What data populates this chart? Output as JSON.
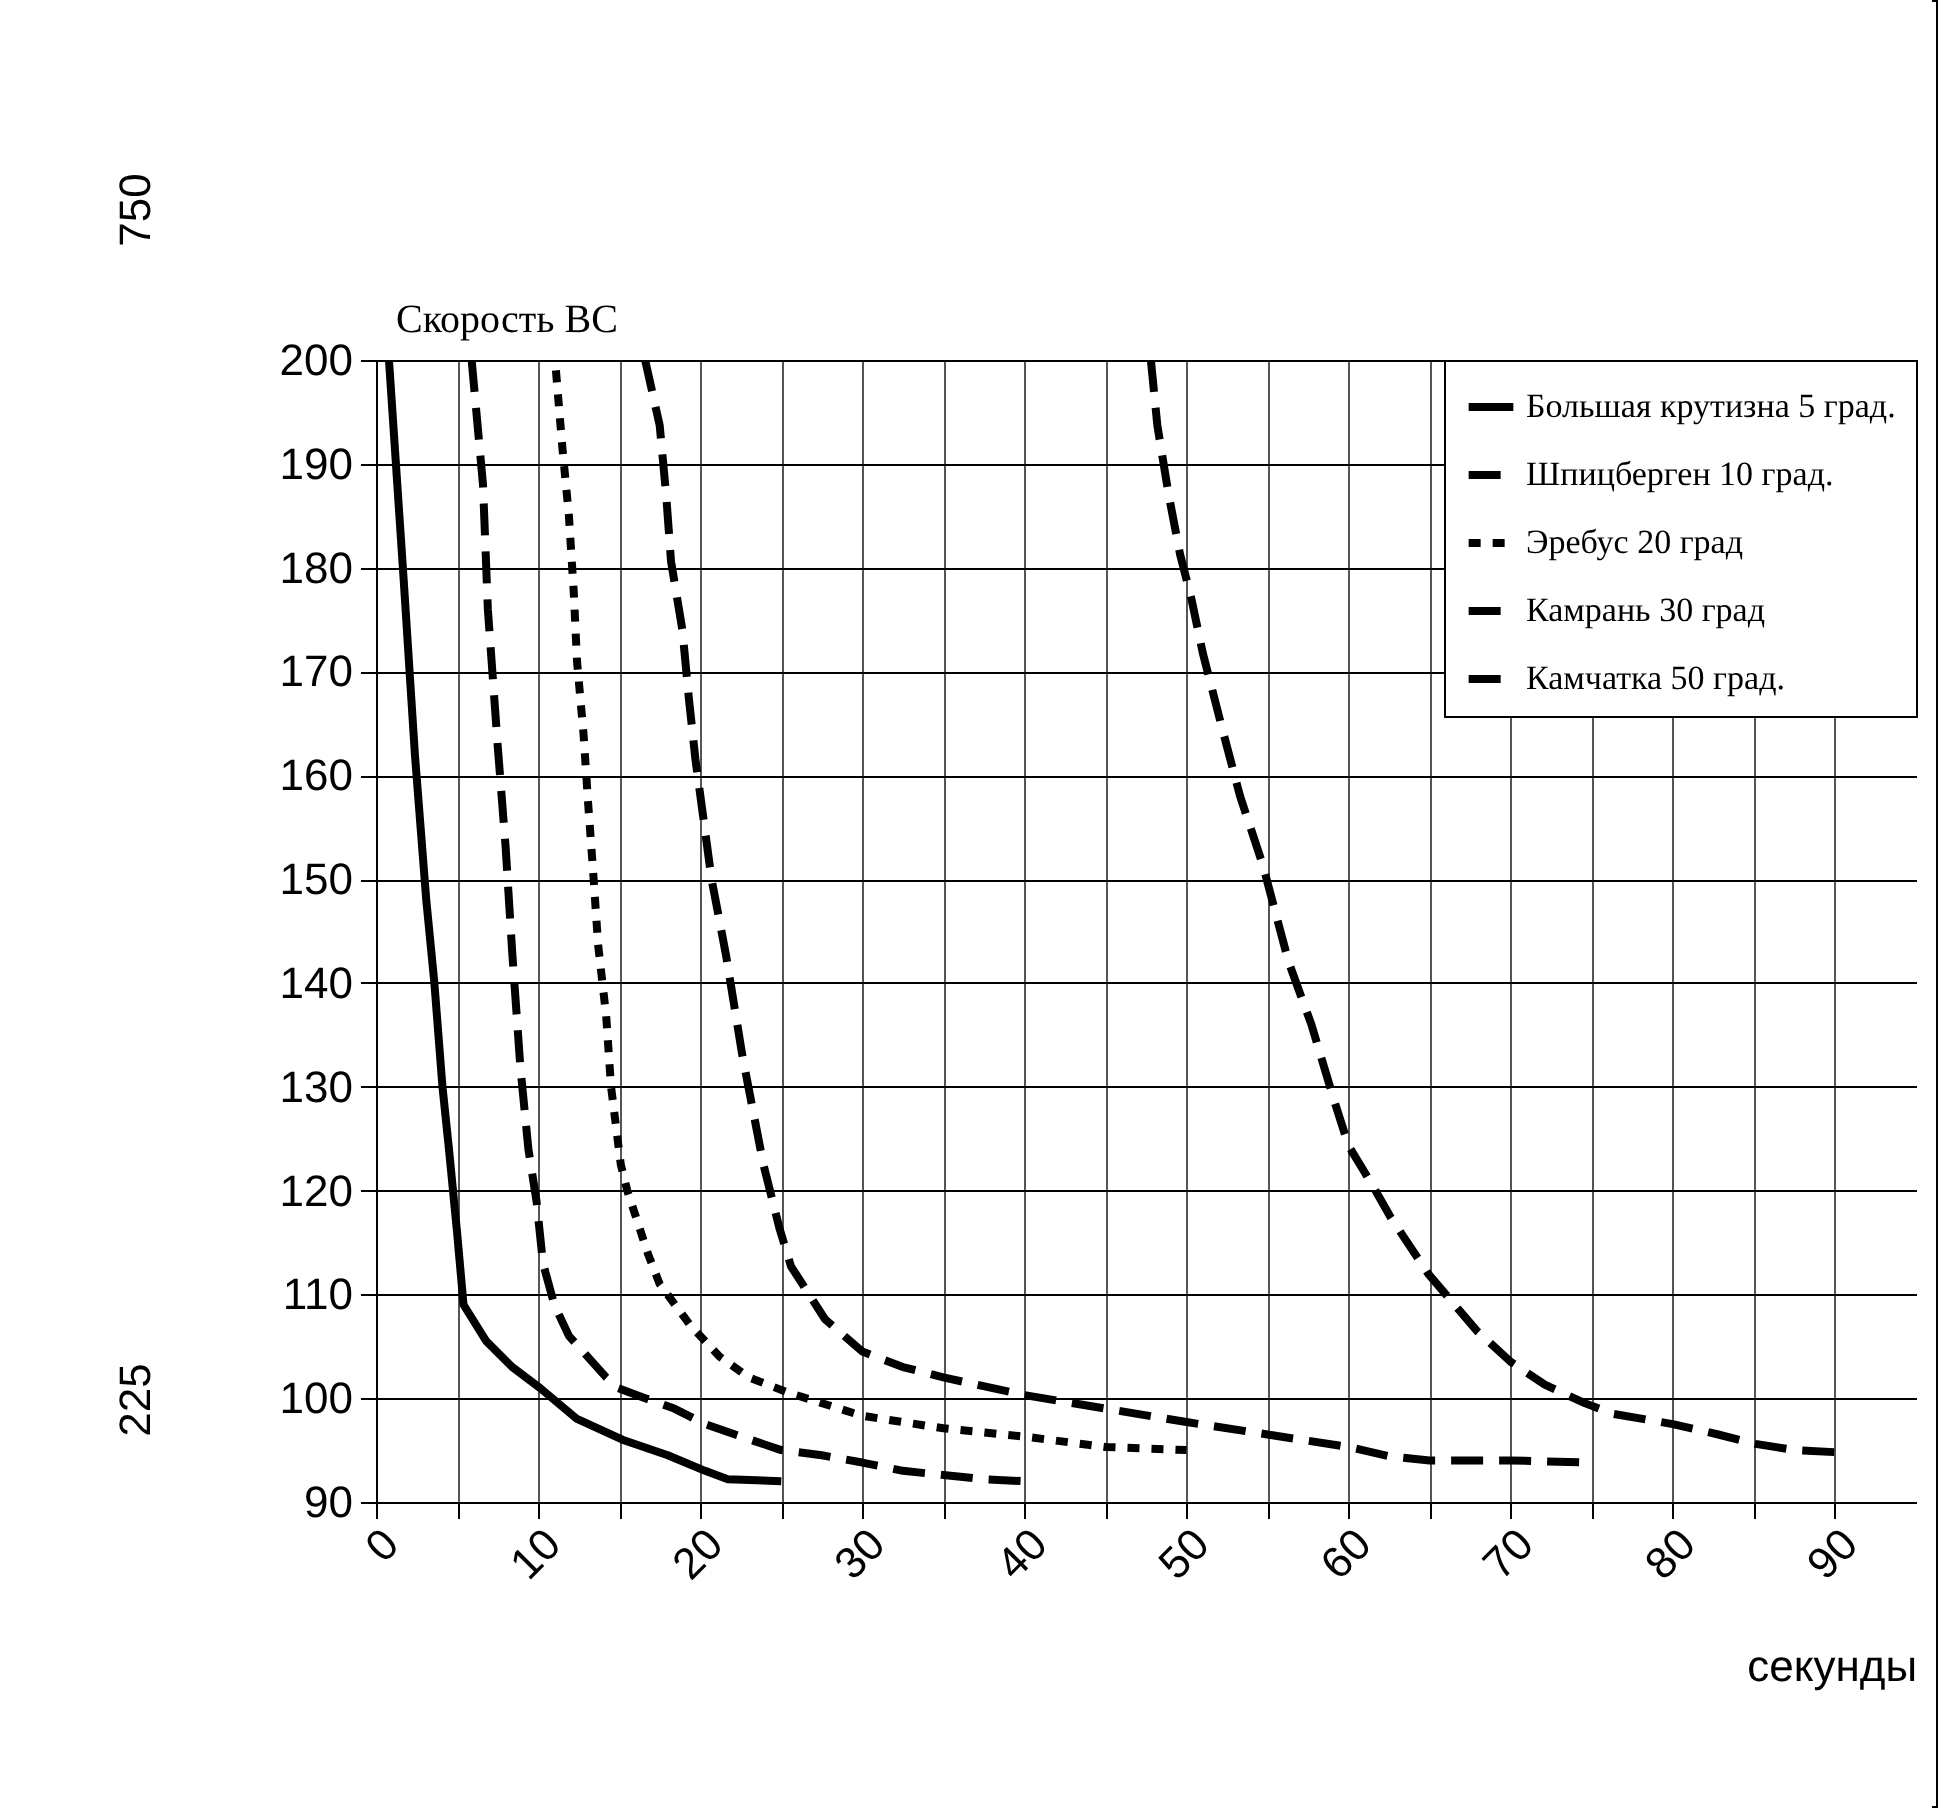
{
  "chart_data": {
    "type": "line",
    "xlabel": "секунды",
    "annotations": [
      "Скорость ВС",
      "750",
      "225"
    ],
    "xlim": [
      0,
      95
    ],
    "xticks": [
      0,
      {
        "value": 5,
        "label": null
      },
      10,
      {
        "value": 15,
        "label": null
      },
      20,
      {
        "value": 25,
        "label": null
      },
      30,
      {
        "value": 35,
        "label": null
      },
      40,
      {
        "value": 45,
        "label": null
      },
      50,
      {
        "value": 55,
        "label": null
      },
      60,
      {
        "value": 65,
        "label": null
      },
      70,
      {
        "value": 75,
        "label": null
      },
      80,
      {
        "value": 85,
        "label": null
      },
      90
    ],
    "ylim": [
      90,
      200
    ],
    "yticks": [
      90,
      100,
      110,
      120,
      130,
      140,
      150,
      160,
      170,
      180,
      190,
      200
    ],
    "grid": true,
    "legend": "top right",
    "series": [
      {
        "name": "Большая крутизна 5 град.",
        "color": "#000000",
        "line_style": "solid",
        "x": [
          0.8,
          1.7,
          2.4,
          3.1,
          3.6,
          4.1,
          4.5,
          5.0,
          5.4,
          6.8,
          8.4,
          10.1,
          12.4,
          15.2,
          18,
          20.3,
          21.7,
          25
        ],
        "values": [
          200,
          179,
          162,
          148,
          140,
          130,
          124,
          116,
          109,
          105.5,
          103,
          101,
          98,
          96,
          94.5,
          93,
          92.2,
          92
        ]
      },
      {
        "name": "Шпицберген 10 град.",
        "color": "#000000",
        "line_style": "dashed",
        "x": [
          5.9,
          6.6,
          6.9,
          7.5,
          8.0,
          8.4,
          8.9,
          9.4,
          9.9,
          10.3,
          11,
          11.9,
          14.2,
          14.9,
          16.6,
          18.4,
          20.3,
          23.1,
          25,
          27.5,
          30,
          32.5,
          37.5,
          40
        ],
        "values": [
          200,
          188,
          176,
          163,
          153,
          143,
          132,
          124,
          119,
          113,
          109,
          106,
          102,
          101,
          100,
          99,
          97.5,
          96,
          95,
          94.5,
          93.8,
          93,
          92.2,
          92
        ]
      },
      {
        "name": "Эребус 20 град",
        "color": "#000000",
        "line_style": "dotted",
        "x": [
          11.1,
          11.5,
          11.9,
          12.2,
          12.4,
          12.8,
          13.1,
          13.4,
          13.7,
          14.2,
          14.5,
          15.1,
          15.5,
          16.8,
          17.5,
          19.4,
          21.2,
          23,
          25.5,
          30,
          35,
          40,
          45,
          50
        ],
        "values": [
          199,
          191.5,
          185,
          177.6,
          171,
          164,
          157,
          150.6,
          143.7,
          136.8,
          130,
          122.5,
          120,
          113.8,
          111,
          107,
          104,
          102,
          100.5,
          98.3,
          97.1,
          96.3,
          95.3,
          95
        ]
      },
      {
        "name": "Камрань 30 град",
        "color": "#000000",
        "line_style": "dashed",
        "x": [
          16.6,
          17.5,
          17.9,
          18.2,
          18.9,
          19.3,
          19.7,
          20.7,
          21.6,
          22.6,
          23.9,
          24.9,
          25.6,
          27.7,
          30,
          32.5,
          35,
          40,
          45,
          50,
          55,
          60,
          62.5,
          65,
          70,
          75
        ],
        "values": [
          200,
          193.7,
          187,
          180.6,
          174,
          167.4,
          161.6,
          150,
          142.6,
          133,
          122.5,
          116.3,
          112.7,
          107.6,
          104.5,
          103,
          102,
          100.3,
          99,
          97.7,
          96.5,
          95.3,
          94.4,
          94,
          94,
          93.8
        ]
      },
      {
        "name": "Камчатка 50 град.",
        "color": "#000000",
        "line_style": "dashed",
        "x": [
          47.8,
          48.2,
          48.9,
          49.6,
          50.3,
          51,
          52.2,
          53.3,
          54.7,
          56.3,
          57.7,
          59.1,
          60,
          61.4,
          62.6,
          64.9,
          67.9,
          70,
          72.1,
          74.6,
          76.3,
          80,
          82.8,
          85.1,
          87.5,
          90
        ],
        "values": [
          200,
          193.7,
          187,
          181.3,
          177,
          171.8,
          164.5,
          158,
          151.4,
          142,
          136,
          128.7,
          124.3,
          120.7,
          117.4,
          112,
          106.5,
          103.5,
          101.3,
          99.5,
          98.5,
          97.5,
          96.5,
          95.6,
          95,
          94.8
        ]
      }
    ]
  }
}
